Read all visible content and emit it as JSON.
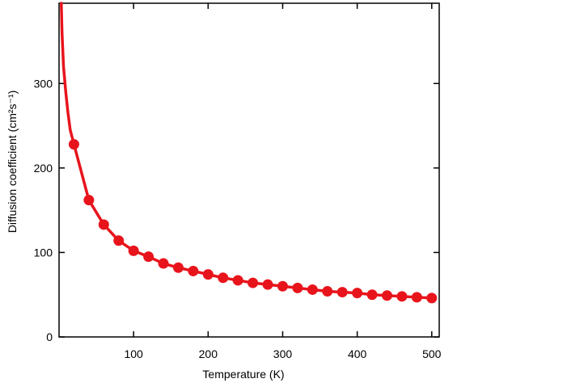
{
  "chart_data": {
    "type": "line",
    "title": "",
    "xlabel": "Temperature (K)",
    "ylabel": "Diffusion coefficient (cm²s⁻¹)",
    "xlim": [
      0,
      510
    ],
    "ylim": [
      0,
      395
    ],
    "x_ticks": [
      100,
      200,
      300,
      400,
      500
    ],
    "x_tick_labels": [
      "100",
      "200",
      "300",
      "400",
      "500"
    ],
    "y_ticks": [
      0,
      100,
      200,
      300
    ],
    "y_tick_labels": [
      "0",
      "100",
      "200",
      "300"
    ],
    "grid": false,
    "legend": "none",
    "series": [
      {
        "color": "#e8141c",
        "marker": "circle",
        "x": [
          20,
          40,
          60,
          80,
          100,
          120,
          140,
          160,
          180,
          200,
          220,
          240,
          260,
          280,
          300,
          320,
          340,
          360,
          380,
          400,
          420,
          440,
          460,
          480,
          500
        ],
        "y": [
          228,
          162,
          133,
          114,
          102,
          95,
          87,
          82,
          78,
          74,
          70,
          67,
          64,
          62,
          60,
          58,
          56,
          54,
          53,
          52,
          50,
          49,
          48,
          47,
          46
        ]
      }
    ],
    "curve_extension": {
      "x": [
        3,
        4,
        6,
        9,
        12,
        15,
        20
      ],
      "y": [
        395,
        360,
        320,
        290,
        265,
        245,
        228
      ]
    }
  }
}
